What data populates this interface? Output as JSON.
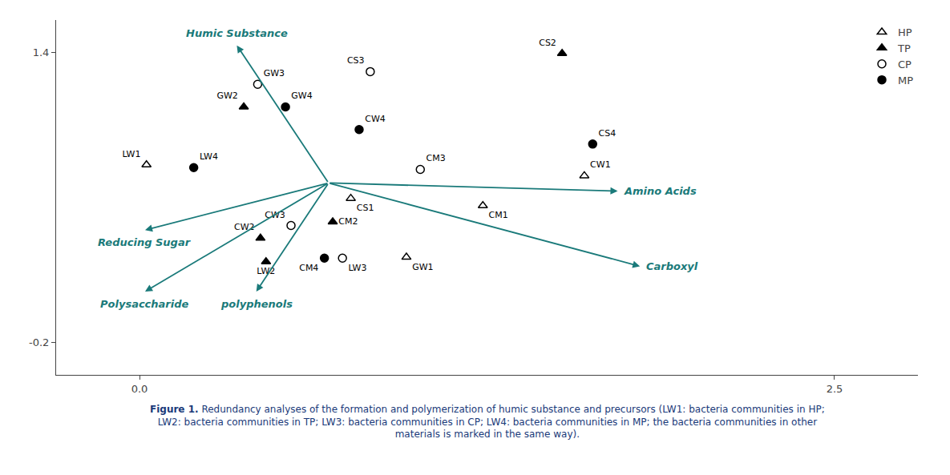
{
  "chart_data": {
    "type": "scatter",
    "xlim": [
      -0.3,
      2.8
    ],
    "ylim": [
      -0.38,
      1.58
    ],
    "xticks": [
      {
        "value": 0.0,
        "label": "0.0"
      },
      2.5
    ],
    "yticks": [
      -0.2,
      1.4
    ],
    "grid": false,
    "legend": "upper right",
    "series": [
      {
        "name": "HP",
        "color": "black",
        "marker": "triangle-up-open",
        "labels": [
          "LW1",
          "GW1",
          "CW1",
          "CM1",
          "CS1"
        ],
        "x": [
          0.025,
          0.96,
          1.6,
          1.235,
          0.76
        ],
        "y": [
          0.78,
          0.27,
          0.72,
          0.555,
          0.595
        ]
      },
      {
        "name": "TP",
        "color": "black",
        "marker": "triangle-up",
        "labels": [
          "LW2",
          "GW2",
          "CW2",
          "CM2",
          "CS2"
        ],
        "x": [
          0.455,
          0.375,
          0.435,
          0.695,
          1.52
        ],
        "y": [
          0.245,
          1.1,
          0.375,
          0.465,
          1.395
        ]
      },
      {
        "name": "CP",
        "color": "black",
        "marker": "circle-open",
        "labels": [
          "LW3",
          "GW3",
          "CW3",
          "CM3",
          "CS3"
        ],
        "x": [
          0.73,
          0.425,
          0.545,
          1.01,
          0.83
        ],
        "y": [
          0.265,
          1.225,
          0.445,
          0.755,
          1.295
        ]
      },
      {
        "name": "MP",
        "color": "black",
        "marker": "circle",
        "labels": [
          "LW4",
          "GW4",
          "CW4",
          "CM4",
          "CS4"
        ],
        "x": [
          0.195,
          0.525,
          0.79,
          0.665,
          1.63
        ],
        "y": [
          0.765,
          1.1,
          0.975,
          0.265,
          0.895
        ]
      }
    ],
    "arrows": {
      "color": "#1a7a7a",
      "origin": [
        0.68,
        0.68
      ],
      "labels": [
        "Humic Substance",
        "Amino Acids",
        "Carboxyl",
        "Reducing Sugar",
        "Polysaccharide",
        "polyphenols"
      ],
      "tips": [
        [
          0.35,
          1.44
        ],
        [
          1.72,
          0.635
        ],
        [
          1.8,
          0.22
        ],
        [
          0.02,
          0.42
        ],
        [
          0.02,
          0.08
        ],
        [
          0.42,
          0.08
        ]
      ]
    },
    "caption": {
      "color": "#1a3a7a",
      "bold": "Figure 1.",
      "lines": [
        "Redundancy analyses of the formation and polymerization of humic substance and precursors (LW1: bacteria communities in HP;",
        "LW2: bacteria communities in TP; LW3: bacteria communities in CP; LW4: bacteria communities in MP; the bacteria communities in other",
        "materials is marked in the same way)."
      ]
    }
  }
}
